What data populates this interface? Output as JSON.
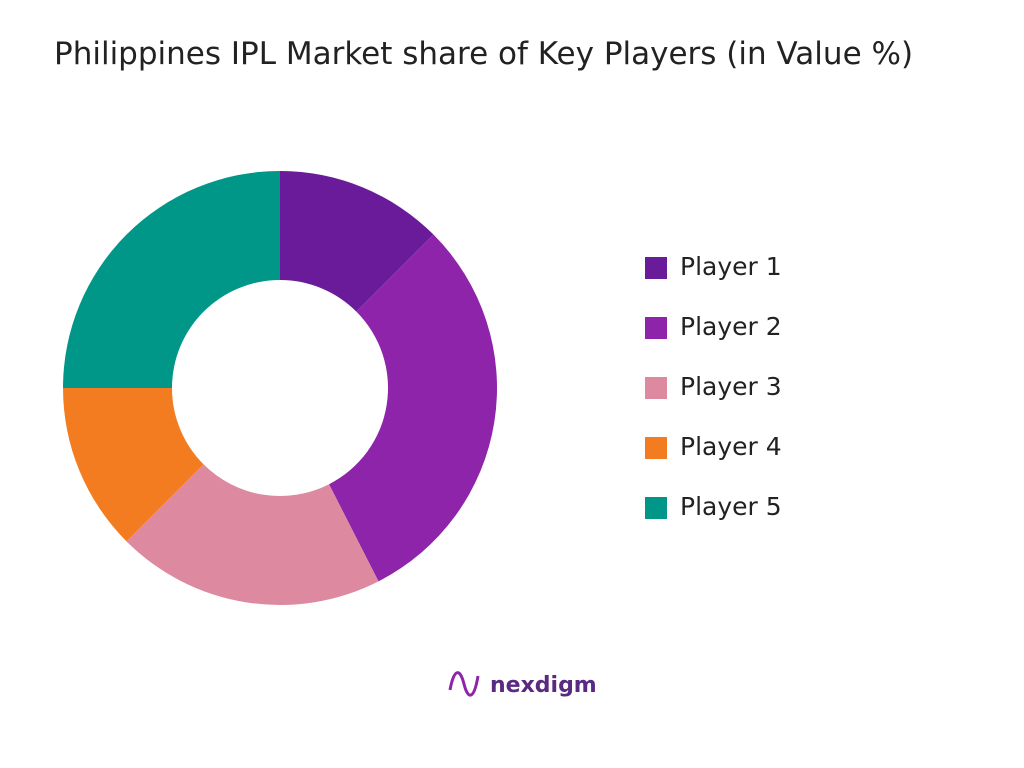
{
  "chart_data": {
    "type": "donut",
    "title": "Philippines IPL Market share of Key Players (in Value %)",
    "categories": [
      "Player 1",
      "Player 2",
      "Player 3",
      "Player 4",
      "Player 5"
    ],
    "values": [
      12.5,
      30,
      20,
      12.5,
      25
    ],
    "colors": [
      "#6a1b9a",
      "#8e24aa",
      "#dd8aa0",
      "#f47c20",
      "#009688"
    ],
    "legend": "right"
  },
  "logo": "nexdigm"
}
